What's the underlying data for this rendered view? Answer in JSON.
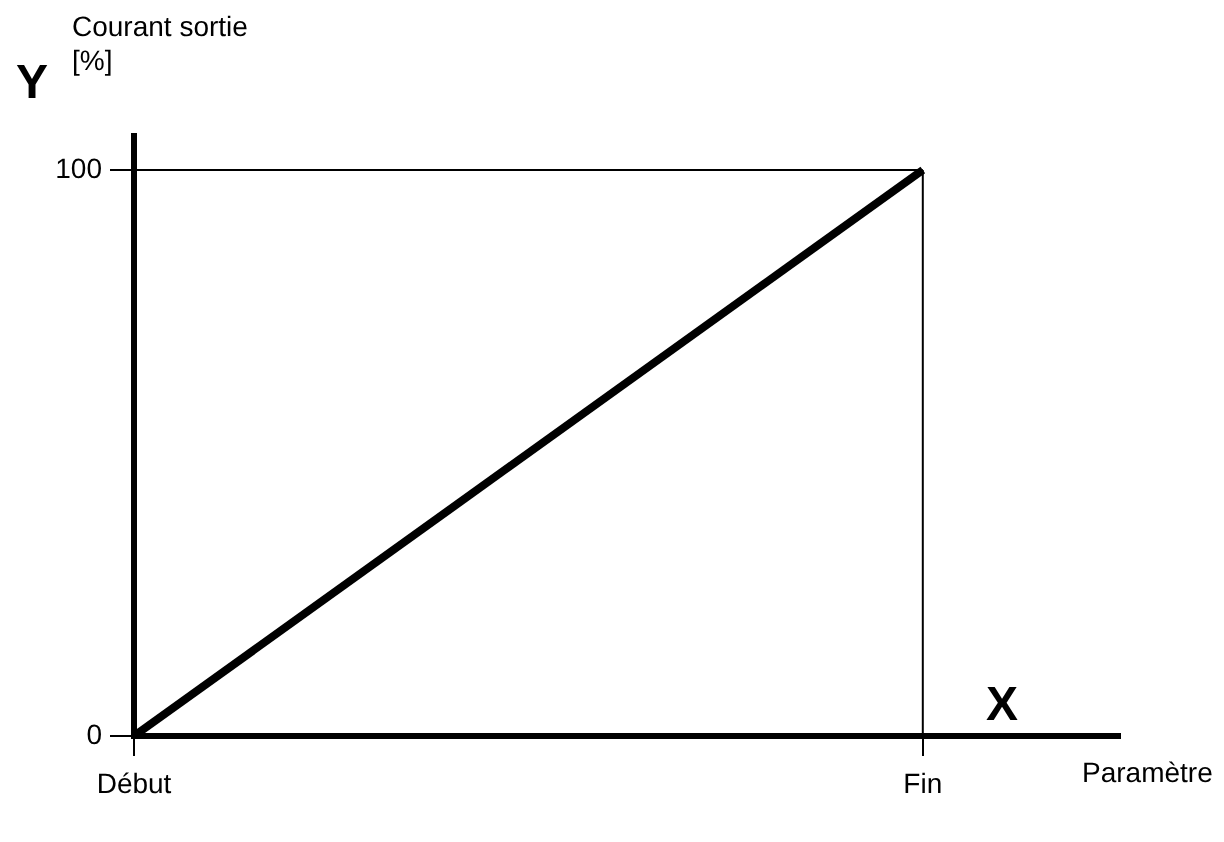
{
  "chart_data": {
    "type": "line",
    "xlabel": "Paramètre",
    "ylabel": "Courant sortie [%]",
    "annotations": [
      "Y",
      "X"
    ],
    "categories": [
      "Début",
      null,
      null,
      null,
      "Fin",
      null
    ],
    "series": [
      {
        "color": "#000000",
        "values": [
          0,
          null,
          null,
          null,
          100,
          null
        ]
      }
    ],
    "ylim": [
      0,
      106
    ],
    "yticks": [
      0,
      100
    ],
    "ref_lines": [
      {
        "axis": "y",
        "value": 100,
        "color": "#000000"
      },
      {
        "axis": "x",
        "value": "Fin",
        "color": "#000000"
      }
    ],
    "grid": false,
    "legend": false,
    "marker": "none",
    "line_style": "solid"
  }
}
